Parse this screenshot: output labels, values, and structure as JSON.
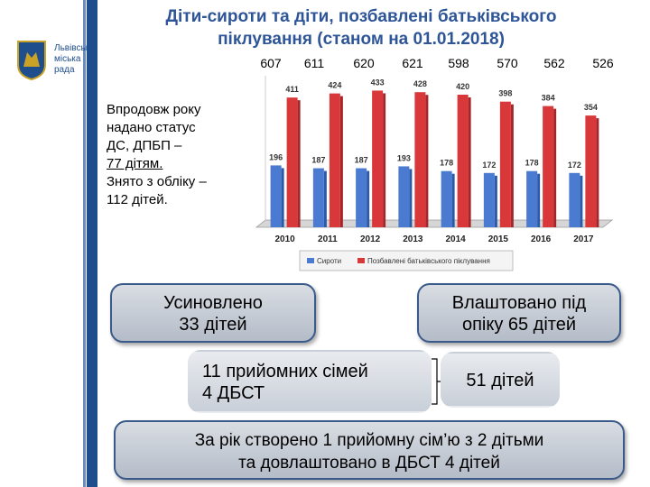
{
  "org": {
    "name_line1": "Львівська",
    "name_line2": "міська",
    "name_line3": "рада"
  },
  "title_line1": "Діти-сироти та діти, позбавлені батьківського",
  "title_line2": "піклування (станом на 01.01.2018)",
  "totals": [
    "607",
    "611",
    "620",
    "621",
    "598",
    "570",
    "562",
    "526"
  ],
  "side_text": {
    "line1": "Впродовж року",
    "line2": "надано статус",
    "line3": "ДС, ДПБП –",
    "line4": "77 дітям.",
    "line5": "Знято з обліку –",
    "line6": "112 дітей."
  },
  "boxes": {
    "adopted_line1": "Усиновлено",
    "adopted_line2": "33 дітей",
    "guardianship_line1": "Влаштовано під",
    "guardianship_line2": "опіку 65 дітей",
    "foster_line1": "11 прийомних сімей",
    "foster_line2": "4 ДБСТ",
    "children": "51 дітей",
    "summary_line1": "За рік створено 1 прийомну сім’ю з 2 дітьми",
    "summary_line2": "та довлаштовано в ДБСТ 4 дітей"
  },
  "colors": {
    "series1": "#4a7bd0",
    "series2": "#d9383a",
    "accent": "#2e5597"
  },
  "chart_data": {
    "type": "bar",
    "categories": [
      "2010",
      "2011",
      "2012",
      "2013",
      "2014",
      "2015",
      "2016",
      "2017"
    ],
    "series": [
      {
        "name": "Сироти",
        "values": [
          196,
          187,
          187,
          193,
          178,
          172,
          178,
          172
        ]
      },
      {
        "name": "Позбавлені батьківського піклування",
        "values": [
          411,
          424,
          433,
          428,
          420,
          398,
          384,
          354
        ]
      }
    ],
    "ylim": [
      0,
      480
    ],
    "grid": false,
    "legend": "bottom"
  }
}
